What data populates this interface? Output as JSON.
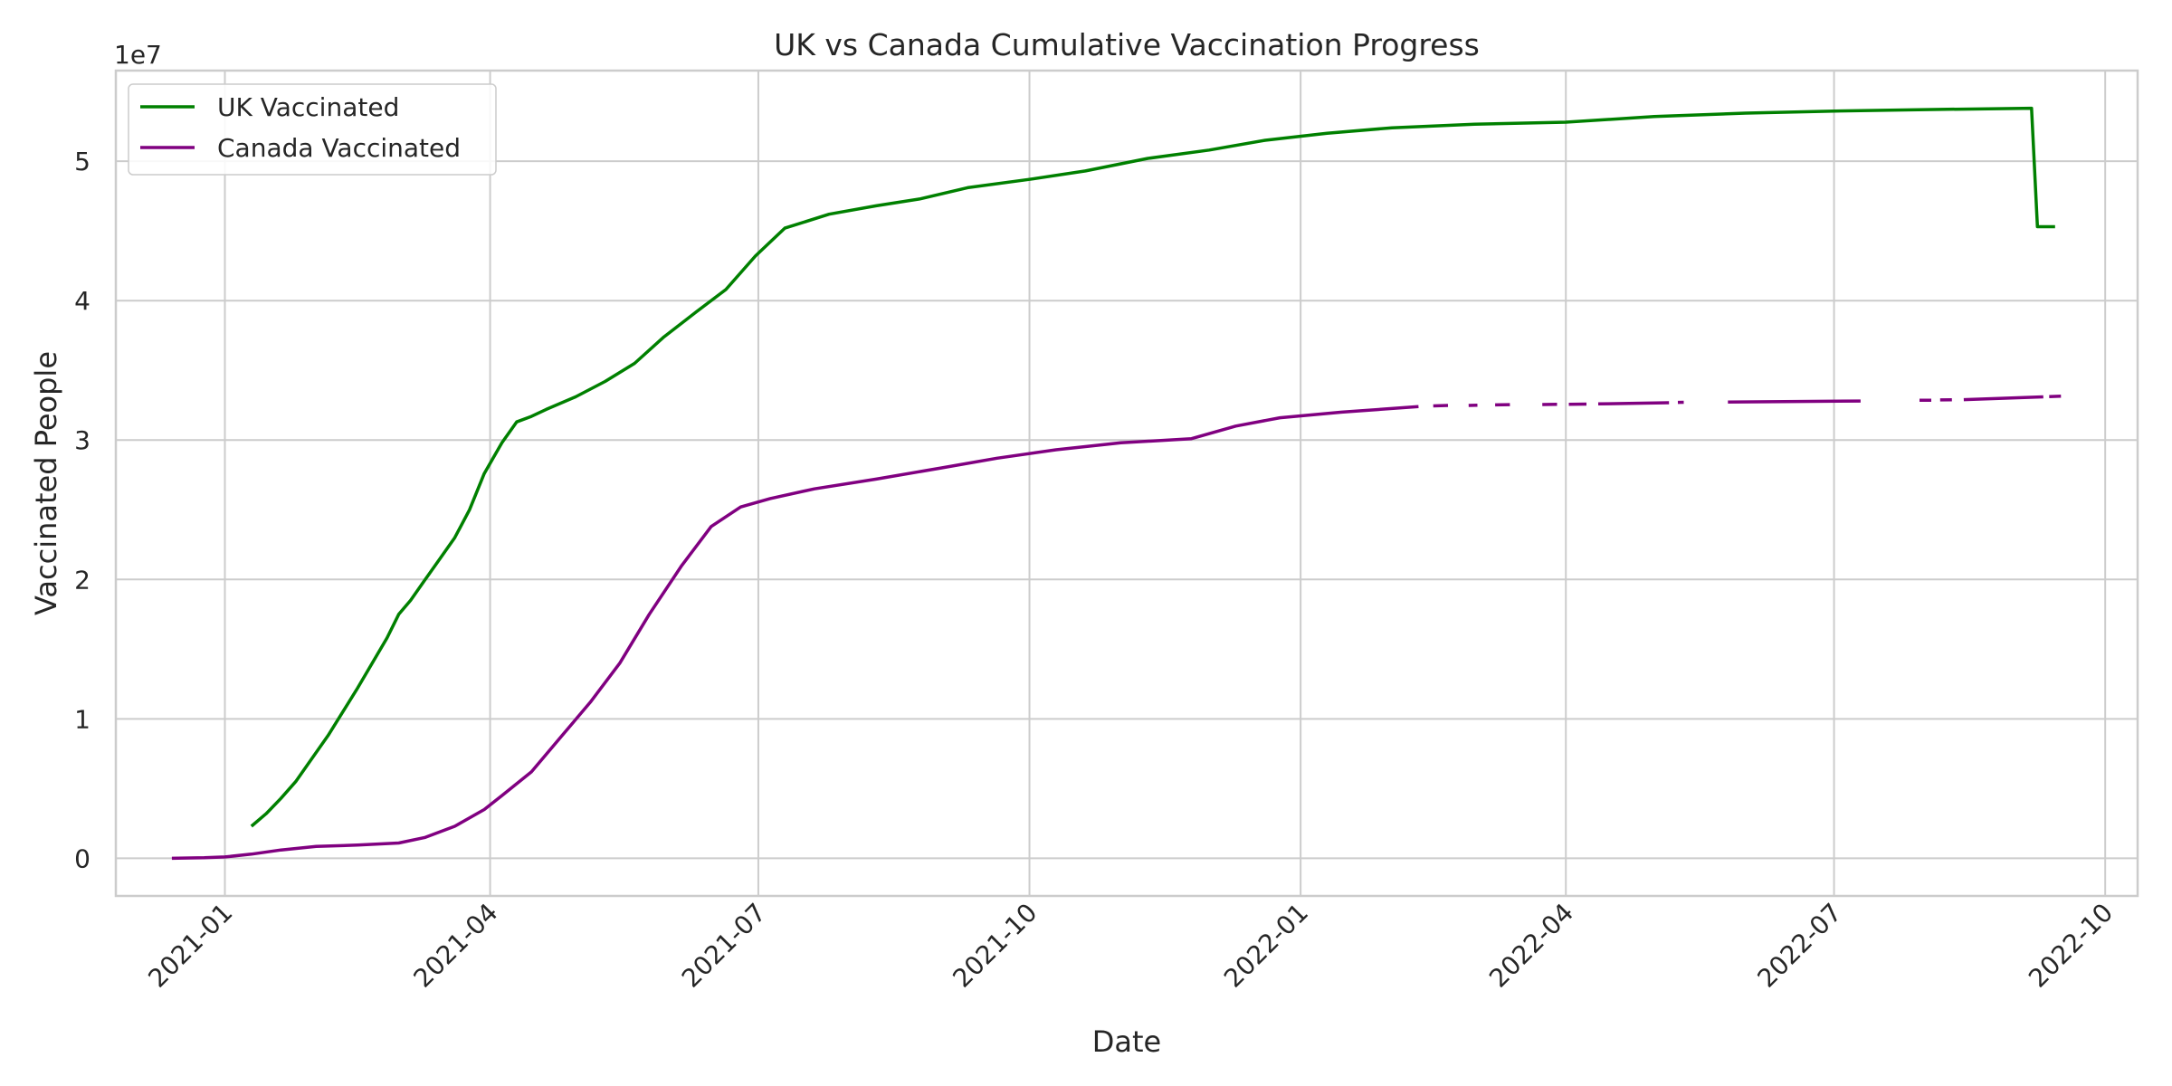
{
  "chart_data": {
    "type": "line",
    "title": "UK vs Canada Cumulative Vaccination Progress",
    "xlabel": "Date",
    "ylabel": "Vaccinated People",
    "y_offset_label": "1e7",
    "x_axis_type": "date",
    "xlim": [
      "2020-11-25",
      "2022-10-12"
    ],
    "ylim": [
      -2700000,
      56500000
    ],
    "x_ticks": [
      {
        "date": "2021-01-01",
        "label": "2021-01"
      },
      {
        "date": "2021-04-01",
        "label": "2021-04"
      },
      {
        "date": "2021-07-01",
        "label": "2021-07"
      },
      {
        "date": "2021-10-01",
        "label": "2021-10"
      },
      {
        "date": "2022-01-01",
        "label": "2022-01"
      },
      {
        "date": "2022-04-01",
        "label": "2022-04"
      },
      {
        "date": "2022-07-01",
        "label": "2022-07"
      },
      {
        "date": "2022-10-01",
        "label": "2022-10"
      }
    ],
    "y_ticks": [
      {
        "value": 0,
        "label": "0"
      },
      {
        "value": 10000000,
        "label": "1"
      },
      {
        "value": 20000000,
        "label": "2"
      },
      {
        "value": 30000000,
        "label": "3"
      },
      {
        "value": 40000000,
        "label": "4"
      },
      {
        "value": 50000000,
        "label": "5"
      }
    ],
    "grid": true,
    "legend": "upper-left",
    "series": [
      {
        "name": "UK Vaccinated",
        "color": "#008000",
        "segments": [
          [
            [
              "2021-01-10",
              2300000
            ],
            [
              "2021-01-15",
              3200000
            ],
            [
              "2021-01-20",
              4300000
            ],
            [
              "2021-01-25",
              5500000
            ],
            [
              "2021-01-30",
              7000000
            ],
            [
              "2021-02-05",
              8800000
            ],
            [
              "2021-02-10",
              10500000
            ],
            [
              "2021-02-15",
              12200000
            ],
            [
              "2021-02-20",
              14000000
            ],
            [
              "2021-02-25",
              15800000
            ],
            [
              "2021-03-01",
              17500000
            ],
            [
              "2021-03-05",
              18500000
            ],
            [
              "2021-03-10",
              20000000
            ],
            [
              "2021-03-15",
              21500000
            ],
            [
              "2021-03-20",
              23000000
            ],
            [
              "2021-03-25",
              25000000
            ],
            [
              "2021-03-30",
              27600000
            ],
            [
              "2021-04-05",
              29800000
            ],
            [
              "2021-04-10",
              31300000
            ],
            [
              "2021-04-15",
              31700000
            ],
            [
              "2021-04-20",
              32200000
            ],
            [
              "2021-04-30",
              33100000
            ],
            [
              "2021-05-10",
              34200000
            ],
            [
              "2021-05-20",
              35500000
            ],
            [
              "2021-05-30",
              37400000
            ],
            [
              "2021-06-10",
              39200000
            ],
            [
              "2021-06-20",
              40800000
            ],
            [
              "2021-06-30",
              43200000
            ],
            [
              "2021-07-10",
              45200000
            ],
            [
              "2021-07-25",
              46200000
            ],
            [
              "2021-08-10",
              46800000
            ],
            [
              "2021-08-25",
              47300000
            ],
            [
              "2021-09-10",
              48100000
            ],
            [
              "2021-10-01",
              48700000
            ],
            [
              "2021-10-20",
              49300000
            ],
            [
              "2021-11-10",
              50200000
            ],
            [
              "2021-12-01",
              50800000
            ],
            [
              "2021-12-20",
              51500000
            ],
            [
              "2022-01-10",
              52000000
            ],
            [
              "2022-02-01",
              52400000
            ],
            [
              "2022-03-01",
              52650000
            ],
            [
              "2022-04-01",
              52800000
            ],
            [
              "2022-05-01",
              53200000
            ],
            [
              "2022-06-01",
              53450000
            ],
            [
              "2022-07-01",
              53600000
            ],
            [
              "2022-08-01",
              53700000
            ],
            [
              "2022-09-06",
              53800000
            ],
            [
              "2022-09-08",
              45300000
            ],
            [
              "2022-09-14",
              45300000
            ]
          ]
        ]
      },
      {
        "name": "Canada Vaccinated",
        "color": "#800080",
        "segments": [
          [
            [
              "2020-12-14",
              0
            ],
            [
              "2020-12-25",
              40000
            ],
            [
              "2021-01-01",
              100000
            ],
            [
              "2021-01-10",
              300000
            ],
            [
              "2021-01-20",
              600000
            ],
            [
              "2021-02-01",
              850000
            ],
            [
              "2021-02-15",
              950000
            ],
            [
              "2021-03-01",
              1100000
            ],
            [
              "2021-03-10",
              1500000
            ],
            [
              "2021-03-20",
              2300000
            ],
            [
              "2021-03-30",
              3500000
            ],
            [
              "2021-04-05",
              4500000
            ],
            [
              "2021-04-15",
              6200000
            ],
            [
              "2021-04-25",
              8700000
            ],
            [
              "2021-05-05",
              11200000
            ],
            [
              "2021-05-15",
              14000000
            ],
            [
              "2021-05-25",
              17500000
            ],
            [
              "2021-06-05",
              21000000
            ],
            [
              "2021-06-15",
              23800000
            ],
            [
              "2021-06-25",
              25200000
            ],
            [
              "2021-07-05",
              25800000
            ],
            [
              "2021-07-20",
              26500000
            ],
            [
              "2021-08-10",
              27200000
            ],
            [
              "2021-09-01",
              28000000
            ],
            [
              "2021-09-20",
              28700000
            ],
            [
              "2021-10-10",
              29300000
            ],
            [
              "2021-11-01",
              29800000
            ],
            [
              "2021-11-25",
              30100000
            ],
            [
              "2021-12-10",
              31000000
            ],
            [
              "2021-12-25",
              31600000
            ],
            [
              "2022-01-15",
              32000000
            ],
            [
              "2022-02-10",
              32400000
            ]
          ],
          [
            [
              "2022-02-15",
              32450000
            ],
            [
              "2022-02-20",
              32480000
            ]
          ],
          [
            [
              "2022-02-27",
              32480000
            ],
            [
              "2022-03-02",
              32500000
            ]
          ],
          [
            [
              "2022-03-08",
              32520000
            ],
            [
              "2022-03-13",
              32540000
            ]
          ],
          [
            [
              "2022-03-24",
              32550000
            ],
            [
              "2022-03-29",
              32560000
            ]
          ],
          [
            [
              "2022-04-02",
              32570000
            ],
            [
              "2022-04-08",
              32580000
            ]
          ],
          [
            [
              "2022-04-12",
              32590000
            ],
            [
              "2022-05-06",
              32680000
            ]
          ],
          [
            [
              "2022-05-09",
              32700000
            ],
            [
              "2022-05-11",
              32710000
            ]
          ],
          [
            [
              "2022-05-26",
              32720000
            ],
            [
              "2022-07-10",
              32800000
            ]
          ],
          [
            [
              "2022-07-30",
              32850000
            ],
            [
              "2022-08-03",
              32860000
            ]
          ],
          [
            [
              "2022-08-06",
              32880000
            ],
            [
              "2022-08-10",
              32890000
            ]
          ],
          [
            [
              "2022-08-14",
              32900000
            ],
            [
              "2022-09-10",
              33100000
            ]
          ],
          [
            [
              "2022-09-12",
              33120000
            ],
            [
              "2022-09-16",
              33150000
            ]
          ]
        ]
      }
    ]
  }
}
